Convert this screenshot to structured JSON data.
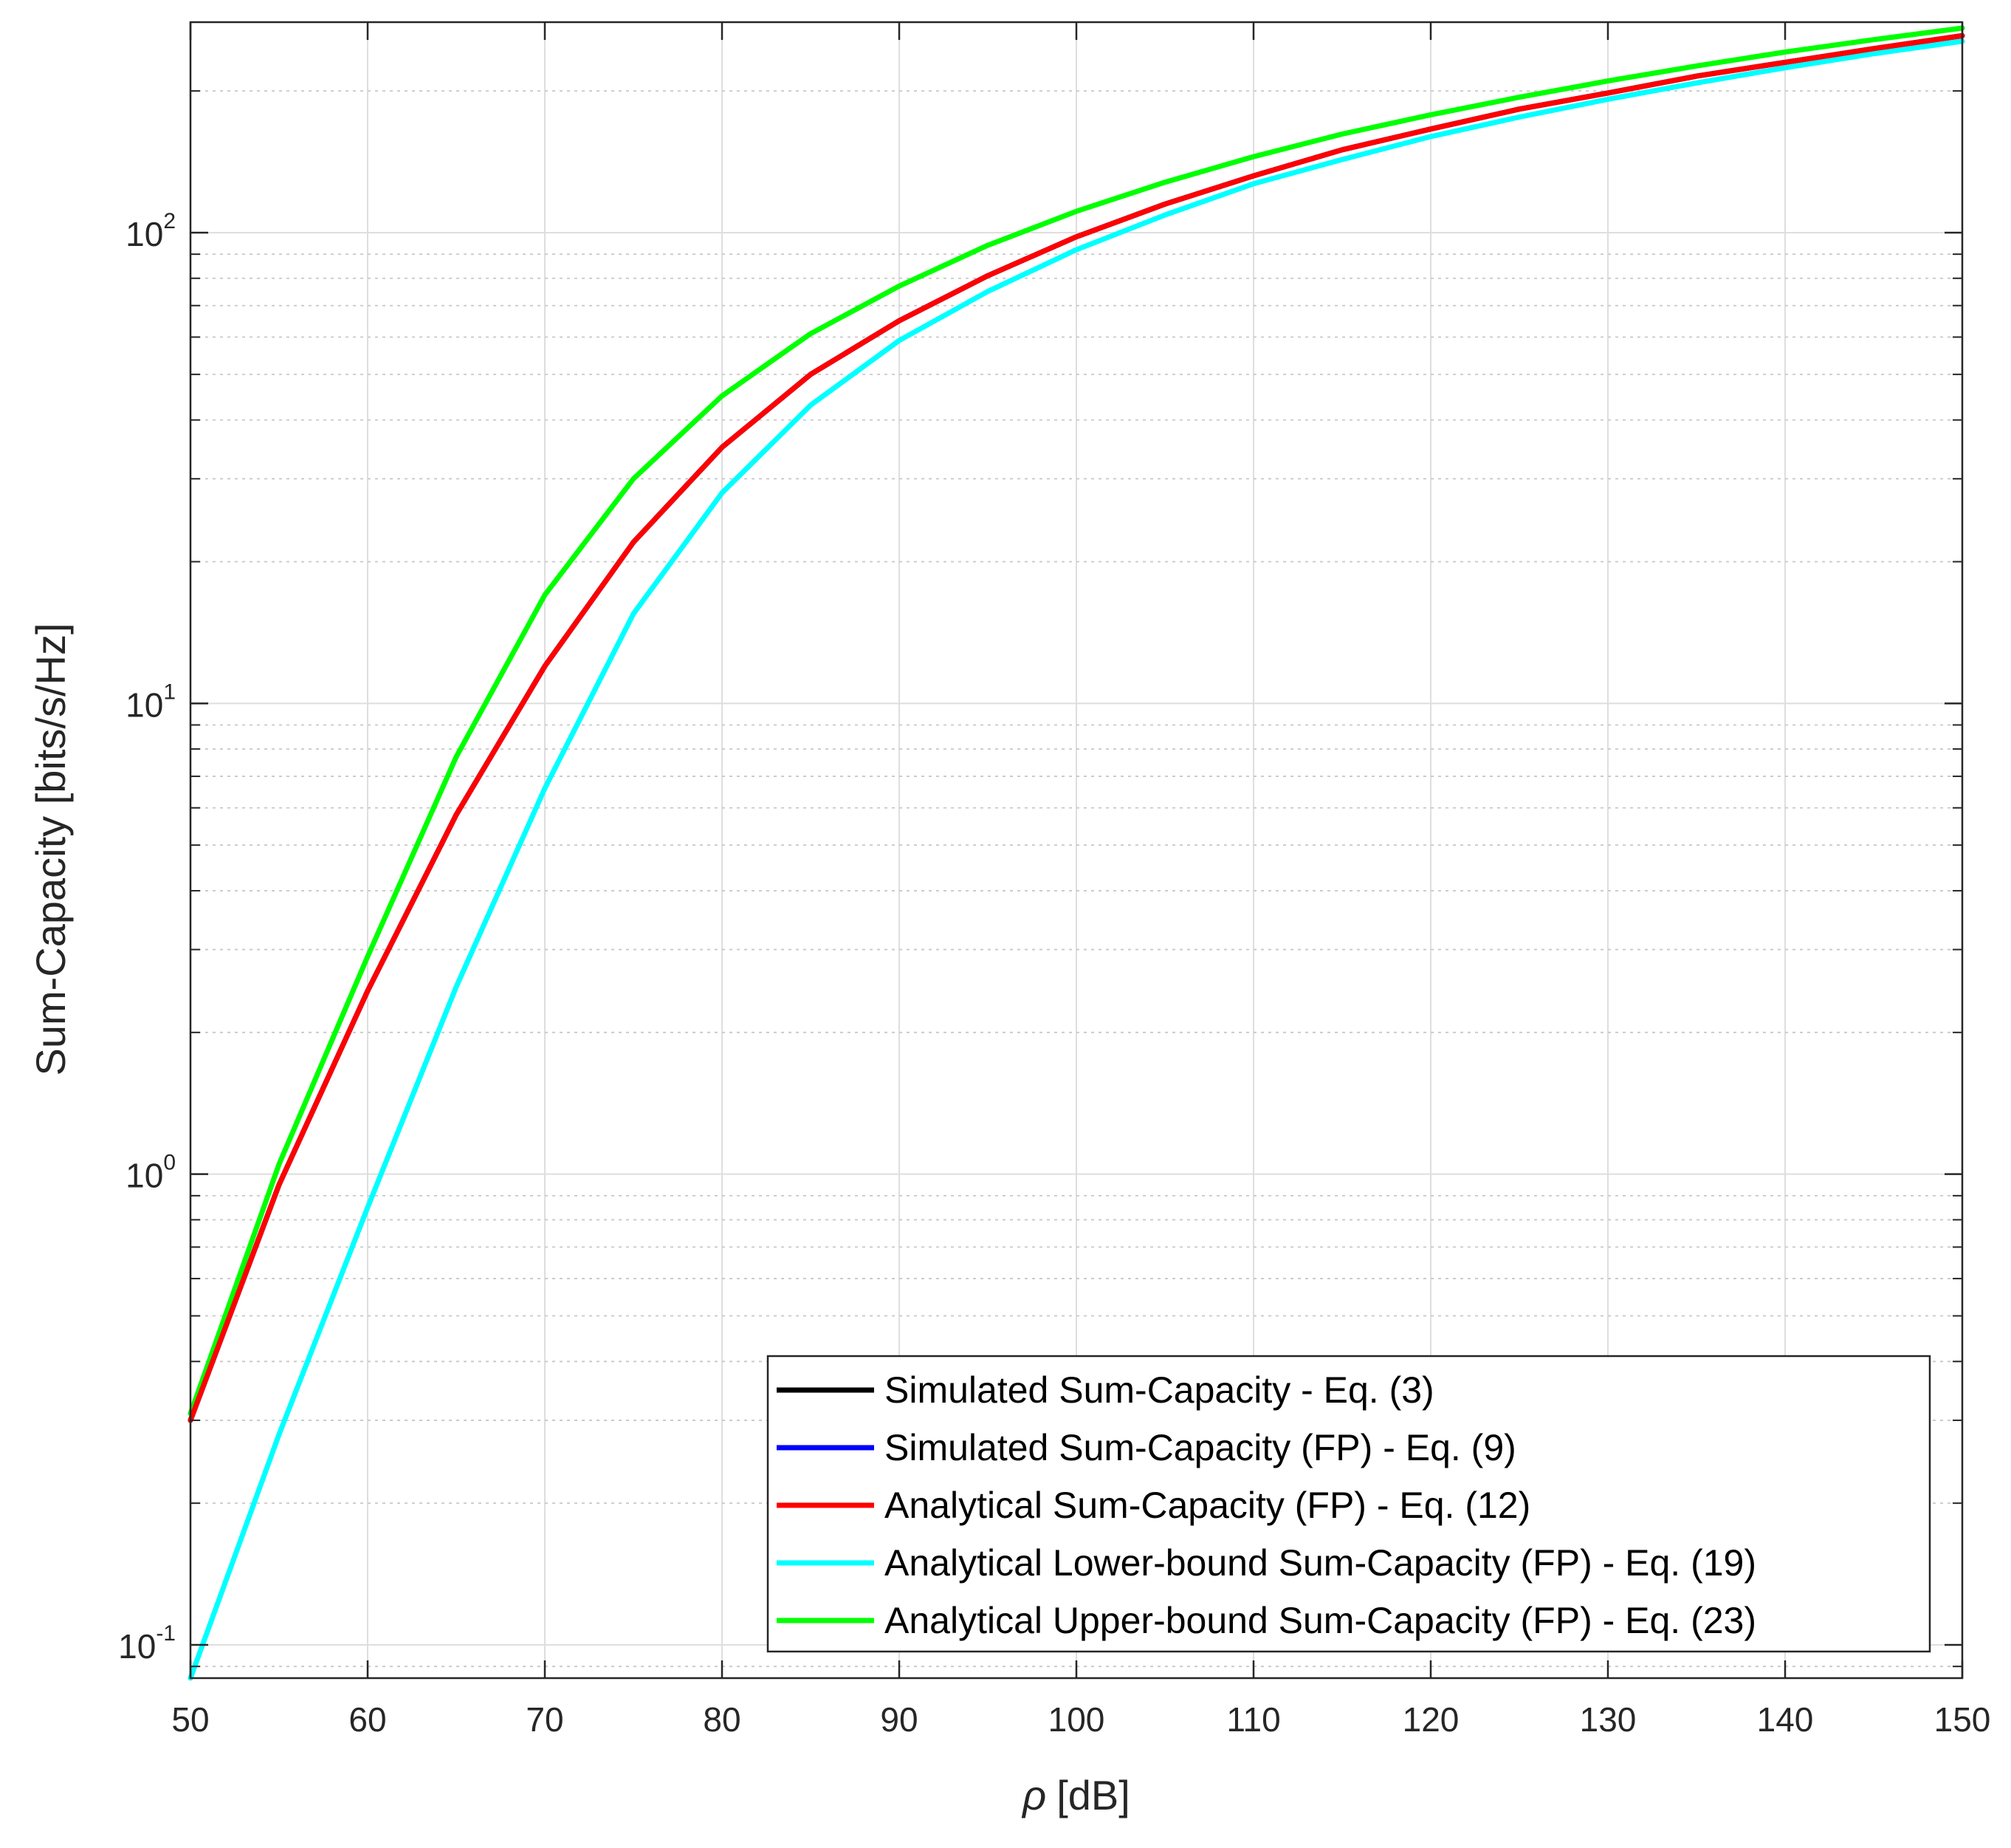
{
  "chart_data": {
    "type": "line",
    "y_scale": "log",
    "title": "",
    "xlabel": "[dB]",
    "xlabel_symbol": "ρ",
    "ylabel": "Sum-Capacity [bits/s/Hz]",
    "xlim": [
      50,
      150
    ],
    "ylim": [
      0.085,
      280
    ],
    "grid": true,
    "legend_position": "bottom-right",
    "x_ticks": [
      "50",
      "60",
      "70",
      "80",
      "90",
      "100",
      "110",
      "120",
      "130",
      "140",
      "150"
    ],
    "y_ticks": [
      {
        "base": "10",
        "exp": "-1",
        "value": 0.1
      },
      {
        "base": "10",
        "exp": "0",
        "value": 1
      },
      {
        "base": "10",
        "exp": "1",
        "value": 10
      },
      {
        "base": "10",
        "exp": "2",
        "value": 100
      }
    ],
    "x": [
      50,
      55,
      60,
      65,
      70,
      75,
      80,
      85,
      90,
      95,
      100,
      105,
      110,
      115,
      120,
      125,
      130,
      135,
      140,
      145,
      150
    ],
    "series": [
      {
        "name": "Simulated Sum-Capacity - Eq. (3)",
        "color": "#000000",
        "values": [
          0.3,
          0.95,
          2.45,
          5.8,
          12,
          22,
          35,
          50,
          65,
          81,
          98,
          115,
          132,
          150,
          166,
          183,
          198,
          215,
          230,
          246,
          262
        ]
      },
      {
        "name": "Simulated Sum-Capacity (FP) - Eq. (9)",
        "color": "#0000ff",
        "values": [
          0.3,
          0.95,
          2.45,
          5.8,
          12,
          22,
          35,
          50,
          65,
          81,
          98,
          115,
          132,
          150,
          166,
          183,
          198,
          215,
          230,
          246,
          262
        ]
      },
      {
        "name": "Analytical Sum-Capacity (FP) - Eq. (12)",
        "color": "#ff0000",
        "values": [
          0.3,
          0.95,
          2.45,
          5.8,
          12,
          22,
          35,
          50,
          65,
          81,
          98,
          115,
          132,
          150,
          166,
          183,
          198,
          215,
          230,
          246,
          262
        ]
      },
      {
        "name": "Analytical Lower-bound Sum-Capacity (FP) - Eq. (19)",
        "color": "#00ffff",
        "values": [
          0.085,
          0.28,
          0.85,
          2.5,
          6.6,
          15.5,
          28,
          43,
          59,
          75,
          92,
          109,
          127,
          143,
          160,
          176,
          192,
          208,
          224,
          240,
          255
        ]
      },
      {
        "name": "Analytical Upper-bound Sum-Capacity (FP) - Eq. (23)",
        "color": "#00ff00",
        "values": [
          0.31,
          1.05,
          2.9,
          7.7,
          17,
          30,
          45,
          61,
          77,
          94,
          111,
          128,
          145,
          162,
          178,
          194,
          210,
          226,
          242,
          257,
          272
        ]
      }
    ]
  }
}
